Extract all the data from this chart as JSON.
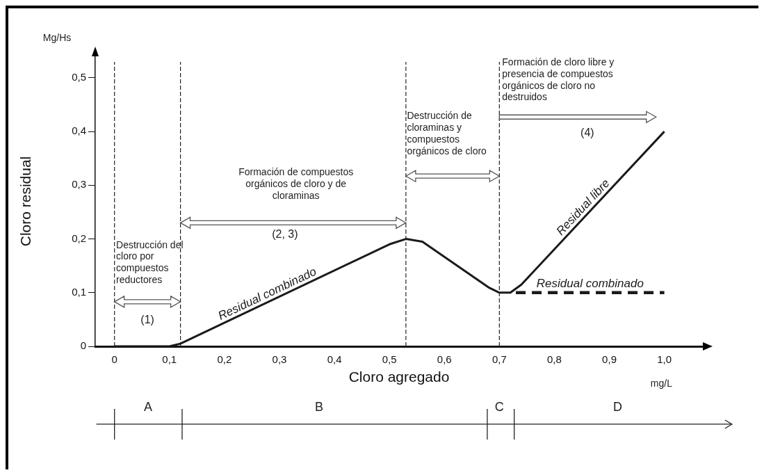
{
  "chart_data": {
    "type": "line",
    "xlabel": "Cloro agregado",
    "ylabel": "Cloro residual",
    "xlim": [
      -0.035,
      1.07
    ],
    "ylim": [
      0,
      0.54
    ],
    "xticks": [
      0,
      {
        "value": 0.1,
        "label": "0,1"
      },
      {
        "value": 0.2,
        "label": "0,2"
      },
      {
        "value": 0.3,
        "label": "0,3"
      },
      {
        "value": 0.4,
        "label": "0,4"
      },
      {
        "value": 0.5,
        "label": "0,5"
      },
      {
        "value": 0.6,
        "label": "0,6"
      },
      {
        "value": 0.7,
        "label": "0,7"
      },
      {
        "value": 0.8,
        "label": "0,8"
      },
      {
        "value": 0.9,
        "label": "0,9"
      },
      {
        "value": 1.0,
        "label": "1,0"
      }
    ],
    "yticks": [
      0,
      {
        "value": 0.1,
        "label": "0,1"
      },
      {
        "value": 0.2,
        "label": "0,2"
      },
      {
        "value": 0.3,
        "label": "0,3"
      },
      {
        "value": 0.4,
        "label": "0,4"
      },
      {
        "value": 0.5,
        "label": "0,5"
      }
    ],
    "marker": "none",
    "series": [
      {
        "name": "Residual combinado",
        "color": "#1a1a1a",
        "line_style": "solid",
        "x": [
          0,
          0.1,
          0.12,
          0.5,
          0.53,
          0.56,
          0.68,
          0.7
        ],
        "values": [
          0,
          0,
          0.005,
          0.19,
          0.2,
          0.195,
          0.11,
          0.1
        ]
      },
      {
        "name": "Residual libre",
        "color": "#1a1a1a",
        "line_style": "solid",
        "x": [
          0.7,
          0.72,
          0.74,
          1.0
        ],
        "values": [
          0.1,
          0.1,
          0.115,
          0.4
        ]
      },
      {
        "name": "Residual combinado",
        "color": "#1a1a1a",
        "line_style": "dashed",
        "x": [
          0.73,
          1.0
        ],
        "values": [
          0.1,
          0.1
        ]
      }
    ],
    "ref_lines": [
      {
        "axis": "x",
        "value": 0,
        "line_style": "dashed",
        "color": "#222222"
      },
      {
        "axis": "x",
        "value": 0.12,
        "line_style": "dashed",
        "color": "#222222"
      },
      {
        "axis": "x",
        "value": 0.53,
        "line_style": "dashed",
        "color": "#222222"
      },
      {
        "axis": "x",
        "value": 0.7,
        "line_style": "dashed",
        "color": "#222222"
      }
    ],
    "annotations": [
      "Mg/Hs",
      "mg/L",
      "Destrucción del cloro por compuestos reductores",
      "(1)",
      "Formación de compuestos orgánicos de cloro y de cloraminas",
      "(2, 3)",
      "Destrucción de cloraminas y compuestos orgánicos de cloro",
      "Formación de cloro libre y presencia de compuestos orgánicos de cloro no destruidos",
      "(4)",
      "A",
      "B",
      "C",
      "D"
    ]
  }
}
